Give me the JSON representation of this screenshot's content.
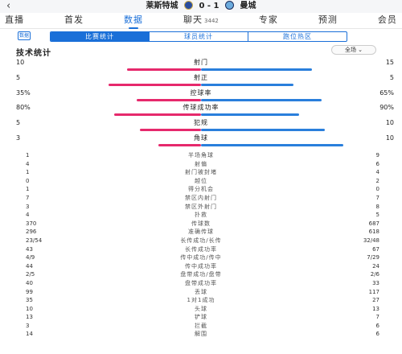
{
  "header": {
    "back_icon": "‹",
    "home_team": "莱斯特城",
    "score": "0 - 1",
    "away_team": "曼城"
  },
  "nav": [
    {
      "label": "直播",
      "active": false
    },
    {
      "label": "首发",
      "active": false
    },
    {
      "label": "数据",
      "active": true
    },
    {
      "label": "聊天",
      "count": "3442",
      "active": false
    },
    {
      "label": "专家",
      "active": false
    },
    {
      "label": "预测",
      "active": false
    },
    {
      "label": "会员",
      "active": false
    }
  ],
  "subtabs": {
    "icon_label": "数据",
    "items": [
      {
        "label": "比赛统计",
        "active": true
      },
      {
        "label": "球员统计",
        "active": false
      },
      {
        "label": "跑位热区",
        "active": false
      }
    ]
  },
  "section": {
    "title": "技术统计",
    "scope": "全场 ⌄"
  },
  "colors": {
    "home": "#e6296c",
    "away": "#2a7fdc",
    "accent": "#1a6fd8"
  },
  "bar_stats": [
    {
      "label": "射门",
      "home": "10",
      "away": "15",
      "home_frac": 0.4,
      "away_frac": 0.6
    },
    {
      "label": "射正",
      "home": "5",
      "away": "5",
      "home_frac": 0.5,
      "away_frac": 0.5
    },
    {
      "label": "控球率",
      "home": "35%",
      "away": "65%",
      "home_frac": 0.35,
      "away_frac": 0.65
    },
    {
      "label": "传球成功率",
      "home": "80%",
      "away": "90%",
      "home_frac": 0.47,
      "away_frac": 0.53
    },
    {
      "label": "犯规",
      "home": "5",
      "away": "10",
      "home_frac": 0.33,
      "away_frac": 0.67
    },
    {
      "label": "角球",
      "home": "3",
      "away": "10",
      "home_frac": 0.23,
      "away_frac": 0.77
    }
  ],
  "plain_stats": [
    {
      "label": "半场角球",
      "home": "1",
      "away": "9"
    },
    {
      "label": "射偏",
      "home": "4",
      "away": "6"
    },
    {
      "label": "射门被封堵",
      "home": "1",
      "away": "4"
    },
    {
      "label": "越位",
      "home": "0",
      "away": "2"
    },
    {
      "label": "得分机会",
      "home": "1",
      "away": "0"
    },
    {
      "label": "禁区内射门",
      "home": "7",
      "away": "7"
    },
    {
      "label": "禁区外射门",
      "home": "3",
      "away": "8"
    },
    {
      "label": "扑救",
      "home": "4",
      "away": "5"
    },
    {
      "label": "传球数",
      "home": "370",
      "away": "687"
    },
    {
      "label": "准确传球",
      "home": "296",
      "away": "618"
    },
    {
      "label": "长传成功/长传",
      "home": "23/54",
      "away": "32/48"
    },
    {
      "label": "长传成功率",
      "home": "43",
      "away": "67"
    },
    {
      "label": "传中成功/传中",
      "home": "4/9",
      "away": "7/29"
    },
    {
      "label": "传中成功率",
      "home": "44",
      "away": "24"
    },
    {
      "label": "盘带成功/盘带",
      "home": "2/5",
      "away": "2/6"
    },
    {
      "label": "盘带成功率",
      "home": "40",
      "away": "33"
    },
    {
      "label": "丢球",
      "home": "99",
      "away": "117"
    },
    {
      "label": "1对1成功",
      "home": "35",
      "away": "27"
    },
    {
      "label": "头球",
      "home": "10",
      "away": "13"
    },
    {
      "label": "铲球",
      "home": "13",
      "away": "7"
    },
    {
      "label": "拦截",
      "home": "3",
      "away": "6"
    },
    {
      "label": "解围",
      "home": "14",
      "away": "6"
    }
  ]
}
